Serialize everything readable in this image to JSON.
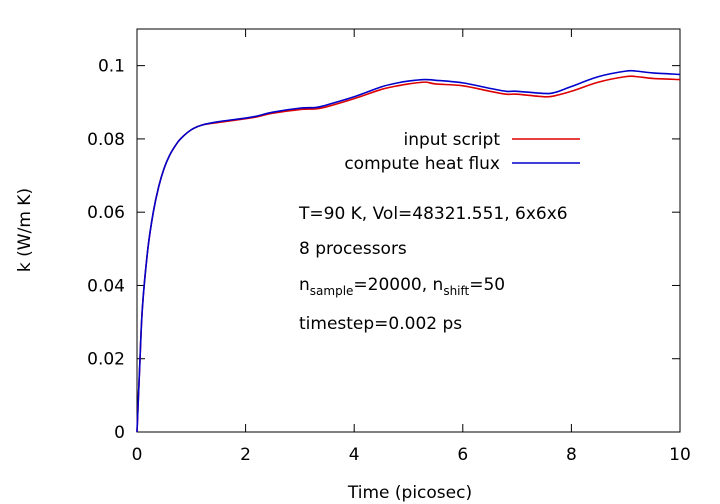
{
  "chart_data": {
    "type": "line",
    "xlabel": "Time (picosec)",
    "ylabel": "k (W/m K)",
    "xlim": [
      0,
      10
    ],
    "ylim": [
      0,
      0.11
    ],
    "xticks": [
      0,
      2,
      4,
      6,
      8,
      10
    ],
    "xtick_labels": [
      "0",
      "2",
      "4",
      "6",
      "8",
      "10"
    ],
    "yticks": [
      0,
      0.02,
      0.04,
      0.06,
      0.08,
      0.1
    ],
    "ytick_labels": [
      "0",
      "0.02",
      "0.04",
      "0.06",
      "0.08",
      "0.1"
    ],
    "grid": false,
    "legend": "upper right inside",
    "colors": {
      "input_script": "#dd0000",
      "compute_heat_flux": "#0000cc",
      "axes": "#000000"
    },
    "series": [
      {
        "name": "input script",
        "color": "#dd0000",
        "x": [
          0,
          0.05,
          0.1,
          0.2,
          0.3,
          0.4,
          0.5,
          0.6,
          0.7,
          0.8,
          1.0,
          1.2,
          1.5,
          2.0,
          2.2,
          2.5,
          3.0,
          3.3,
          3.5,
          4.0,
          4.5,
          4.8,
          5.0,
          5.3,
          5.5,
          6.0,
          6.5,
          6.8,
          7.0,
          7.5,
          7.7,
          8.0,
          8.5,
          9.0,
          9.2,
          9.5,
          10.0
        ],
        "y": [
          0,
          0.018,
          0.034,
          0.05,
          0.06,
          0.067,
          0.072,
          0.0755,
          0.078,
          0.08,
          0.0825,
          0.0838,
          0.0845,
          0.0855,
          0.086,
          0.087,
          0.088,
          0.0882,
          0.0888,
          0.091,
          0.0935,
          0.0945,
          0.095,
          0.0955,
          0.095,
          0.0945,
          0.093,
          0.0922,
          0.0922,
          0.0915,
          0.0918,
          0.093,
          0.0955,
          0.097,
          0.097,
          0.0965,
          0.0962
        ]
      },
      {
        "name": "compute heat flux",
        "color": "#0000cc",
        "x": [
          0,
          0.05,
          0.1,
          0.2,
          0.3,
          0.4,
          0.5,
          0.6,
          0.7,
          0.8,
          1.0,
          1.2,
          1.5,
          2.0,
          2.2,
          2.5,
          3.0,
          3.3,
          3.5,
          4.0,
          4.5,
          4.8,
          5.0,
          5.3,
          5.5,
          6.0,
          6.5,
          6.8,
          7.0,
          7.5,
          7.7,
          8.0,
          8.5,
          9.0,
          9.2,
          9.5,
          10.0
        ],
        "y": [
          0,
          0.018,
          0.034,
          0.05,
          0.06,
          0.067,
          0.072,
          0.0755,
          0.078,
          0.08,
          0.0825,
          0.0838,
          0.0847,
          0.0857,
          0.0862,
          0.0873,
          0.0884,
          0.0886,
          0.0893,
          0.0915,
          0.0942,
          0.0953,
          0.0958,
          0.0962,
          0.096,
          0.0953,
          0.0938,
          0.093,
          0.093,
          0.0924,
          0.0927,
          0.0943,
          0.097,
          0.0985,
          0.0985,
          0.098,
          0.0976
        ]
      }
    ],
    "annotations": {
      "line1": "T=90 K, Vol=48321.551, 6x6x6",
      "line2": "8 processors",
      "line3": {
        "prefix": "n",
        "sub1": "sample",
        "mid": "=20000, n",
        "sub2": "shift",
        "suffix": "=50"
      },
      "line4": "timestep=0.002 ps"
    }
  }
}
